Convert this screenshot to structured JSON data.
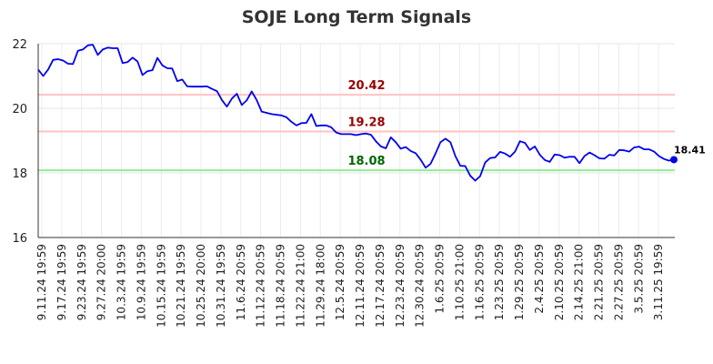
{
  "chart_data": {
    "type": "line",
    "title": "SOJE Long Term Signals",
    "xlabel": "",
    "ylabel": "",
    "ylim": [
      16,
      22
    ],
    "yticks": [
      "16",
      "18",
      "20",
      "22"
    ],
    "grid": true,
    "x_tick_labels": [
      "9.11.24 19:59",
      "9.17.24 19:59",
      "9.23.24 19:59",
      "9.27.24 20:00",
      "10.3.24 19:59",
      "10.9.24 19:59",
      "10.15.24 19:59",
      "10.21.24 19:59",
      "10.25.24 20:00",
      "10.31.24 19:59",
      "11.6.24 20:59",
      "11.12.24 20:59",
      "11.18.24 20:59",
      "11.22.24 21:00",
      "11.29.24 18:00",
      "12.5.24 20:59",
      "12.11.24 20:59",
      "12.17.24 20:59",
      "12.23.24 20:59",
      "12.30.24 20:59",
      "1.6.25 20:59",
      "1.10.25 21:00",
      "1.16.25 20:59",
      "1.23.25 20:59",
      "1.29.25 20:59",
      "2.4.25 20:59",
      "2.10.25 20:59",
      "2.14.25 21:00",
      "2.21.25 20:59",
      "2.27.25 20:59",
      "3.5.25 20:59",
      "3.11.25 19:59"
    ],
    "series": [
      {
        "color": "#0000ee",
        "values": [
          21.2,
          21.0,
          21.2,
          21.5,
          21.52,
          21.48,
          21.38,
          21.37,
          21.78,
          21.82,
          21.95,
          21.97,
          21.65,
          21.82,
          21.88,
          21.86,
          21.86,
          21.4,
          21.43,
          21.57,
          21.45,
          21.03,
          21.15,
          21.18,
          21.56,
          21.33,
          21.24,
          21.23,
          20.84,
          20.89,
          20.68,
          20.67,
          20.67,
          20.67,
          20.68,
          20.6,
          20.53,
          20.25,
          20.05,
          20.3,
          20.45,
          20.1,
          20.25,
          20.52,
          20.25,
          19.9,
          19.86,
          19.82,
          19.8,
          19.78,
          19.72,
          19.58,
          19.47,
          19.54,
          19.55,
          19.82,
          19.45,
          19.47,
          19.47,
          19.41,
          19.25,
          19.2,
          19.2,
          19.2,
          19.17,
          19.2,
          19.22,
          19.18,
          18.98,
          18.82,
          18.76,
          19.1,
          18.95,
          18.75,
          18.8,
          18.68,
          18.61,
          18.41,
          18.16,
          18.28,
          18.6,
          18.95,
          19.06,
          18.95,
          18.52,
          18.22,
          18.21,
          17.91,
          17.76,
          17.9,
          18.32,
          18.46,
          18.48,
          18.65,
          18.6,
          18.5,
          18.66,
          18.98,
          18.93,
          18.71,
          18.82,
          18.56,
          18.4,
          18.34,
          18.57,
          18.55,
          18.47,
          18.5,
          18.5,
          18.3,
          18.52,
          18.63,
          18.55,
          18.45,
          18.44,
          18.56,
          18.54,
          18.71,
          18.7,
          18.66,
          18.79,
          18.81,
          18.73,
          18.73,
          18.66,
          18.52,
          18.43,
          18.38,
          18.41
        ]
      }
    ],
    "levels": [
      {
        "value": 20.42,
        "label": "20.42",
        "line_color": "#ffc2c2",
        "text_color": "#990000"
      },
      {
        "value": 19.28,
        "label": "19.28",
        "line_color": "#ffc2c2",
        "text_color": "#990000"
      },
      {
        "value": 18.08,
        "label": "18.08",
        "line_color": "#90ee90",
        "text_color": "#006600"
      }
    ],
    "last_value": {
      "value": 18.41,
      "label": "18.41"
    }
  }
}
